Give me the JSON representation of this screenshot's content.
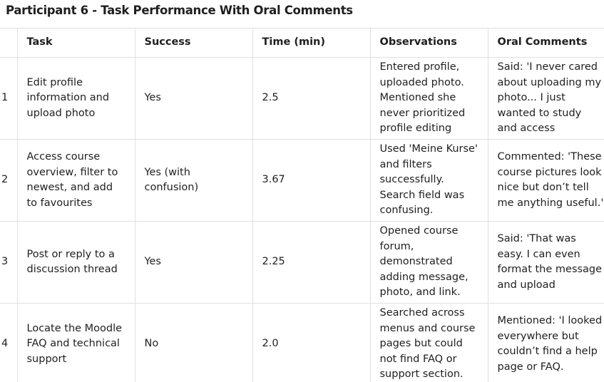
{
  "title": "Participant 6 - Task Performance With Oral Comments",
  "columns": [
    "",
    "Task",
    "Success",
    "Time (min)",
    "Observations",
    "Oral Comments"
  ],
  "rows": [
    {
      "index": "1",
      "task": "Edit profile information and upload photo",
      "success": "Yes",
      "time": "2.5",
      "observations": "Entered profile, uploaded photo. Mentioned she never prioritized profile editing",
      "comments": "Said: 'I never cared about uploading my photo... I just wanted to study and access"
    },
    {
      "index": "2",
      "task": "Access course overview, filter to newest, and add to favourites",
      "success": "Yes (with confusion)",
      "time": "3.67",
      "observations": "Used 'Meine Kurse' and filters successfully. Search field was confusing.",
      "comments": "Commented: 'These course pictures look nice but don’t tell me anything useful.'"
    },
    {
      "index": "3",
      "task": "Post or reply to a discussion thread",
      "success": "Yes",
      "time": "2.25",
      "observations": "Opened course forum, demonstrated adding message, photo, and link.",
      "comments": "Said: 'That was easy. I can even format the message and upload"
    },
    {
      "index": "4",
      "task": "Locate the Moodle FAQ and technical support",
      "success": "No",
      "time": "2.0",
      "observations": "Searched across menus and course pages but could not find FAQ or support section.",
      "comments": "Mentioned: 'I looked everywhere but couldn’t find a help page or FAQ."
    }
  ]
}
